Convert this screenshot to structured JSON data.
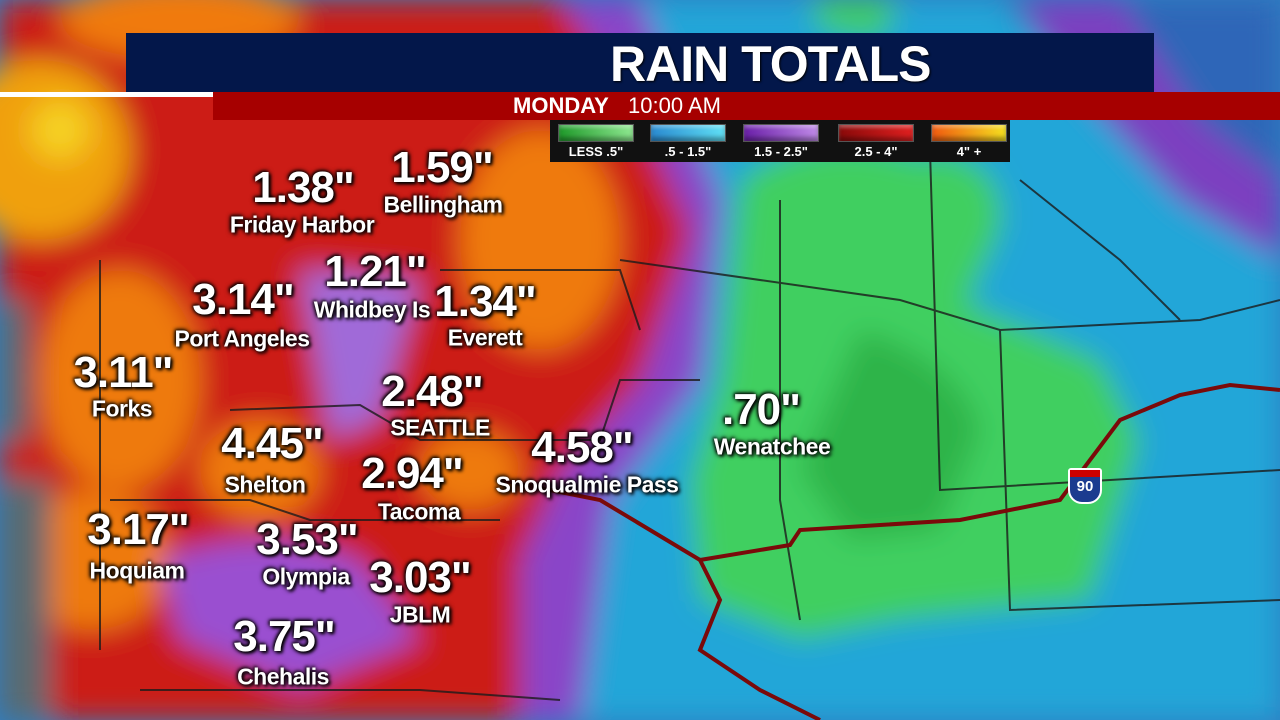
{
  "header": {
    "title": "RAIN TOTALS",
    "day": "MONDAY",
    "time": "10:00 AM"
  },
  "legend": [
    {
      "label": "LESS .5\"",
      "color": "#2fb33a"
    },
    {
      "label": ".5 - 1.5\"",
      "color": "#2fb8e6"
    },
    {
      "label": "1.5 - 2.5\"",
      "color": "#8a3fc8"
    },
    {
      "label": "2.5 - 4\"",
      "color": "#c01515"
    },
    {
      "label": "4\" +",
      "color": "#f59a10"
    }
  ],
  "locations": [
    {
      "name": "Friday Harbor",
      "value": "1.38\""
    },
    {
      "name": "Bellingham",
      "value": "1.59\""
    },
    {
      "name": "Whidbey Is",
      "value": "1.21\""
    },
    {
      "name": "Port Angeles",
      "value": "3.14\""
    },
    {
      "name": "Everett",
      "value": "1.34\""
    },
    {
      "name": "Forks",
      "value": "3.11\""
    },
    {
      "name": "SEATTLE",
      "value": "2.48\""
    },
    {
      "name": "Shelton",
      "value": "4.45\""
    },
    {
      "name": "Tacoma",
      "value": "2.94\""
    },
    {
      "name": "Snoqualmie Pass",
      "value": "4.58\""
    },
    {
      "name": "Wenatchee",
      "value": ".70\""
    },
    {
      "name": "Hoquiam",
      "value": "3.17\""
    },
    {
      "name": "Olympia",
      "value": "3.53\""
    },
    {
      "name": "JBLM",
      "value": "3.03\""
    },
    {
      "name": "Chehalis",
      "value": "3.75\""
    }
  ],
  "highway": {
    "number": "90"
  }
}
